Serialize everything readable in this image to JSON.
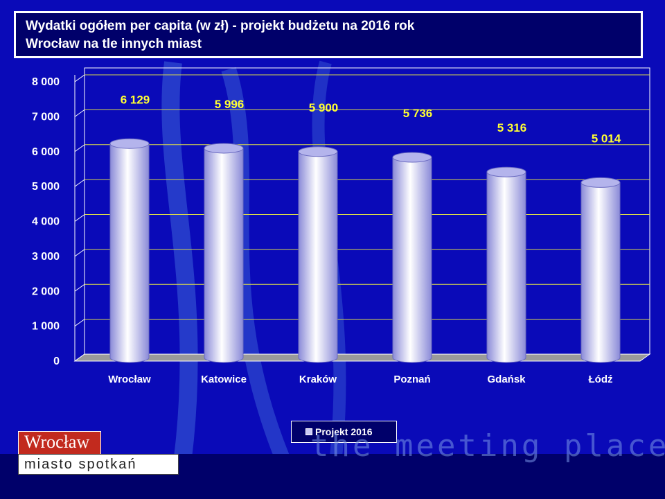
{
  "title": {
    "line1": "Wydatki ogółem per capita (w zł) - projekt budżetu na 2016 rok",
    "line2": "Wrocław na tle innych miast"
  },
  "chart_data": {
    "type": "bar",
    "categories": [
      "Wrocław",
      "Katowice",
      "Kraków",
      "Poznań",
      "Gdańsk",
      "Łódź"
    ],
    "series": [
      {
        "name": "Projekt 2016",
        "values": [
          6129,
          5996,
          5900,
          5736,
          5316,
          5014
        ]
      }
    ],
    "data_labels": [
      "6 129",
      "5 996",
      "5 900",
      "5 736",
      "5 316",
      "5 014"
    ],
    "ylim": [
      0,
      8000
    ],
    "yticks": [
      0,
      1000,
      2000,
      3000,
      4000,
      5000,
      6000,
      7000,
      8000
    ],
    "ytick_labels": [
      "0",
      "1 000",
      "2 000",
      "3 000",
      "4 000",
      "5 000",
      "6 000",
      "7 000",
      "8 000"
    ],
    "grid": true,
    "legend_position": "bottom",
    "colors": {
      "bar": "#d2d2f8",
      "bar_shade": "#8a8ad8",
      "label": "#ffff33",
      "grid": "#d8d84a",
      "floor": "#9a9a9a"
    }
  },
  "logo": {
    "top": "Wrocław",
    "bottom": "miasto spotkań"
  },
  "tagline": "the meeting place"
}
